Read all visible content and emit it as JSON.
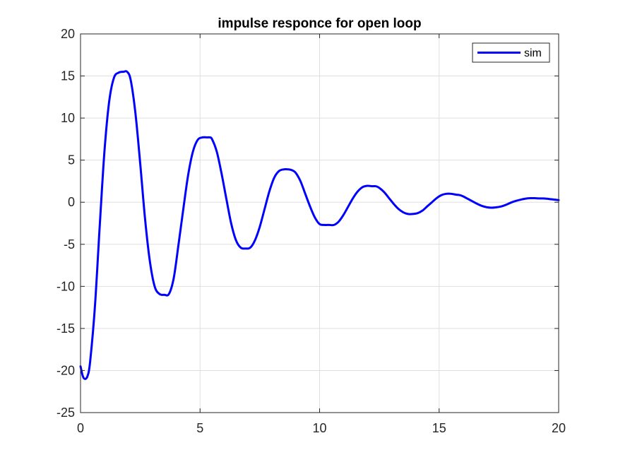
{
  "chart_data": {
    "type": "line",
    "title": "impulse responce for open loop",
    "xlabel": "",
    "ylabel": "",
    "xlim": [
      0,
      20
    ],
    "ylim": [
      -25,
      20
    ],
    "x_ticks": [
      0,
      5,
      10,
      15,
      20
    ],
    "x_tick_labels": [
      "0",
      "5",
      "10",
      "15",
      "20"
    ],
    "y_ticks": [
      -25,
      -20,
      -15,
      -10,
      -5,
      0,
      5,
      10,
      15,
      20
    ],
    "y_tick_labels": [
      "-25",
      "-20",
      "-15",
      "-10",
      "-5",
      "0",
      "5",
      "10",
      "15",
      "20"
    ],
    "grid": true,
    "legend_position": "top-right",
    "series": [
      {
        "name": "sim",
        "color": "#0000ff",
        "x": [
          0,
          0.1,
          0.2,
          0.3,
          0.4,
          0.6,
          0.8,
          1.0,
          1.2,
          1.4,
          1.6,
          1.8,
          1.95,
          2.1,
          2.3,
          2.5,
          2.7,
          2.9,
          3.1,
          3.3,
          3.5,
          3.7,
          3.9,
          4.1,
          4.3,
          4.5,
          4.7,
          4.9,
          5.1,
          5.3,
          5.4,
          5.5,
          5.7,
          5.9,
          6.1,
          6.3,
          6.5,
          6.7,
          6.9,
          7.1,
          7.3,
          7.5,
          7.7,
          7.9,
          8.1,
          8.3,
          8.5,
          8.7,
          8.85,
          9.0,
          9.2,
          9.4,
          9.6,
          9.8,
          10.0,
          10.2,
          10.4,
          10.6,
          10.8,
          11.0,
          11.2,
          11.4,
          11.6,
          11.8,
          12.0,
          12.2,
          12.35,
          12.5,
          12.7,
          12.9,
          13.1,
          13.3,
          13.5,
          13.7,
          13.9,
          14.1,
          14.3,
          14.5,
          14.7,
          14.9,
          15.1,
          15.3,
          15.5,
          15.7,
          15.85,
          16.0,
          16.2,
          16.4,
          16.6,
          16.8,
          17.0,
          17.2,
          17.4,
          17.6,
          17.8,
          18.0,
          18.2,
          18.4,
          18.6,
          18.8,
          19.0,
          19.2,
          19.35,
          19.5,
          19.7,
          19.85,
          20.0
        ],
        "y": [
          -19.5,
          -20.7,
          -21.0,
          -20.6,
          -19.0,
          -12.5,
          -3.0,
          6.0,
          12.0,
          14.8,
          15.4,
          15.5,
          15.5,
          14.5,
          10.5,
          4.5,
          -2.0,
          -7.0,
          -10.0,
          -10.9,
          -11.0,
          -10.9,
          -9.0,
          -5.0,
          -0.8,
          3.2,
          6.0,
          7.4,
          7.7,
          7.7,
          7.7,
          7.5,
          6.0,
          3.4,
          0.4,
          -2.5,
          -4.5,
          -5.4,
          -5.5,
          -5.4,
          -4.5,
          -2.9,
          -0.8,
          1.3,
          2.9,
          3.7,
          3.9,
          3.9,
          3.8,
          3.5,
          2.5,
          1.0,
          -0.5,
          -1.8,
          -2.6,
          -2.7,
          -2.7,
          -2.7,
          -2.3,
          -1.5,
          -0.5,
          0.5,
          1.3,
          1.8,
          1.95,
          1.9,
          1.9,
          1.7,
          1.2,
          0.5,
          -0.2,
          -0.8,
          -1.2,
          -1.4,
          -1.4,
          -1.3,
          -1.0,
          -0.5,
          0.0,
          0.5,
          0.85,
          1.0,
          1.0,
          0.9,
          0.85,
          0.7,
          0.4,
          0.1,
          -0.2,
          -0.45,
          -0.6,
          -0.65,
          -0.6,
          -0.5,
          -0.3,
          -0.05,
          0.15,
          0.3,
          0.42,
          0.48,
          0.48,
          0.45,
          0.45,
          0.42,
          0.35,
          0.3,
          0.25
        ]
      }
    ]
  }
}
